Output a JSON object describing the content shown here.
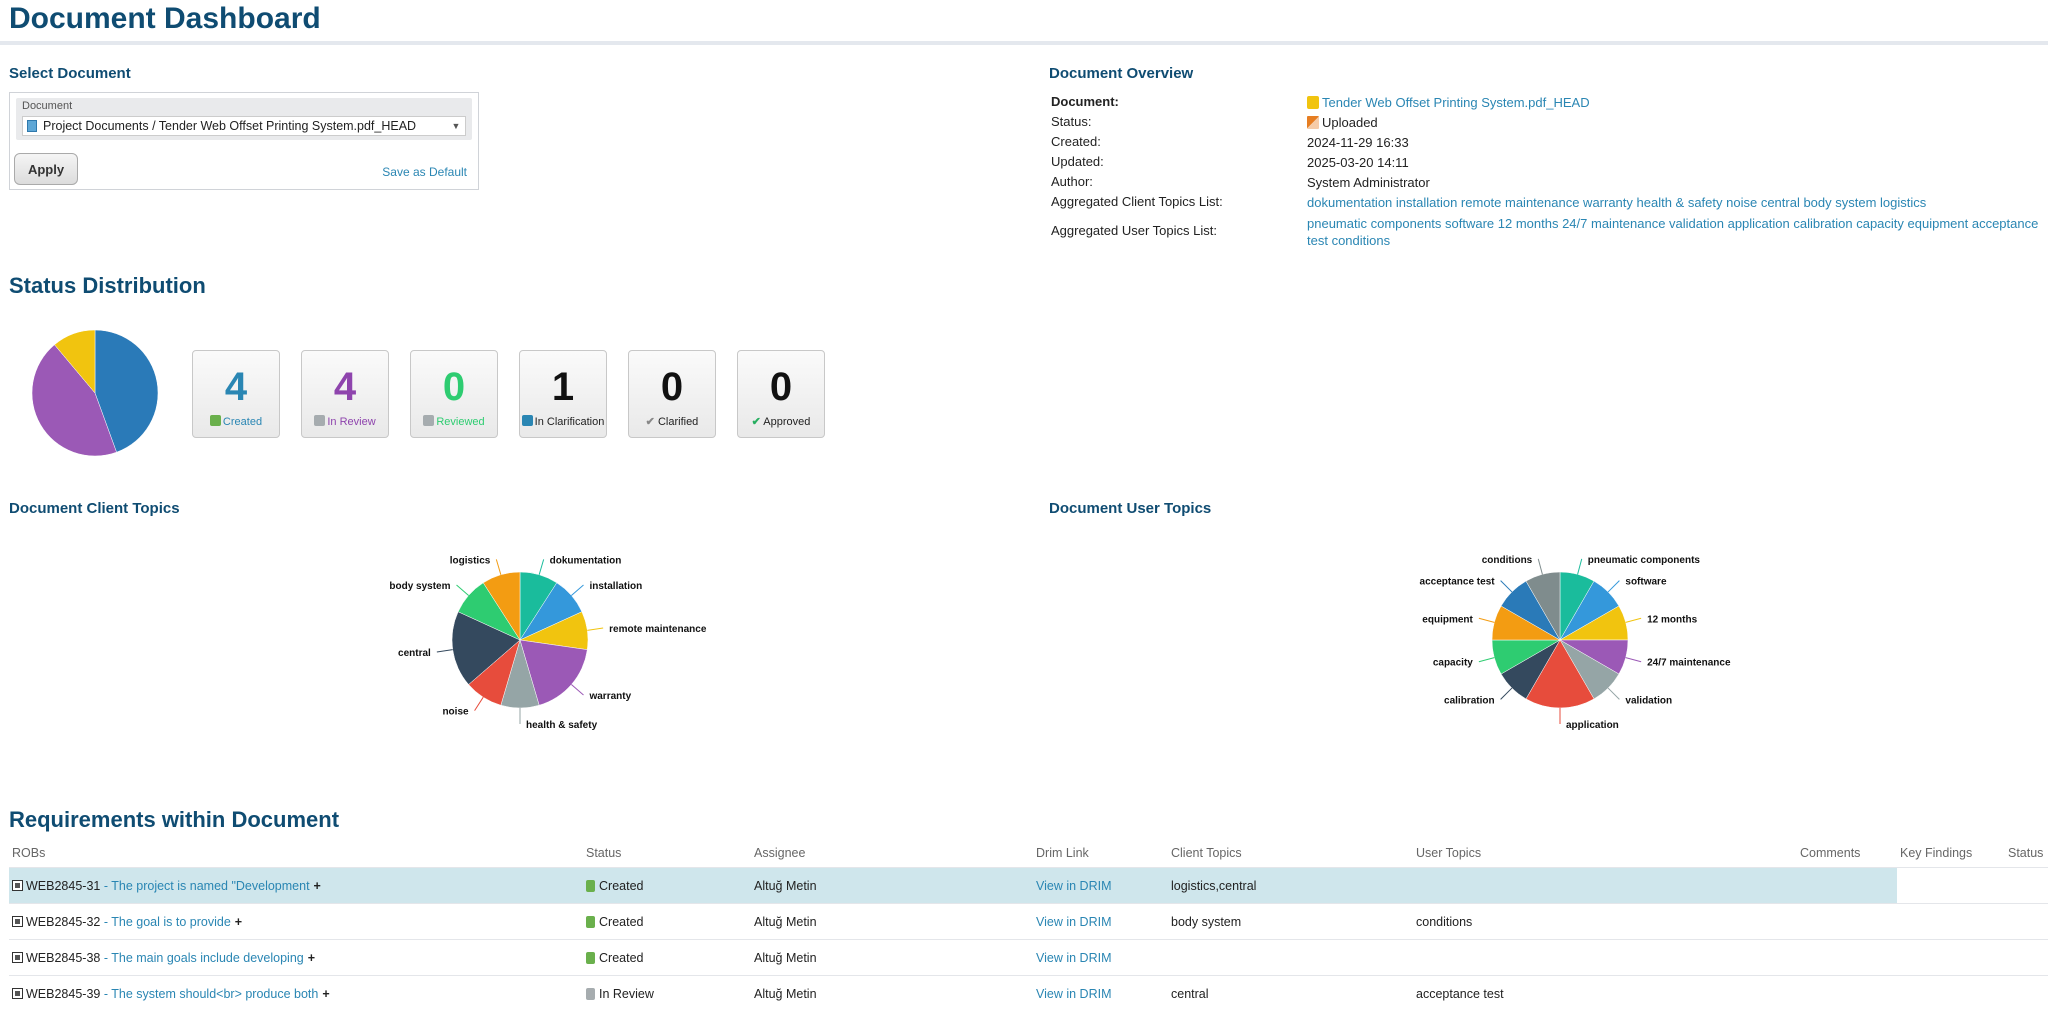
{
  "page": {
    "title": "Document Dashboard"
  },
  "select_document": {
    "heading": "Select Document",
    "field_label": "Document",
    "selected_value": "Project Documents / Tender Web Offset Printing System.pdf_HEAD",
    "apply_label": "Apply",
    "save_default_label": "Save as Default"
  },
  "overview": {
    "heading": "Document Overview",
    "rows": [
      {
        "label": "Document:",
        "value": "Tender Web Offset Printing System.pdf_HEAD"
      },
      {
        "label": "Status:",
        "value": "Uploaded"
      },
      {
        "label": "Created:",
        "value": "2024-11-29 16:33"
      },
      {
        "label": "Updated:",
        "value": "2025-03-20 14:11"
      },
      {
        "label": "Author:",
        "value": "System Administrator"
      },
      {
        "label": "Aggregated Client Topics List:",
        "value": "dokumentation installation remote maintenance warranty health & safety noise central body system logistics"
      },
      {
        "label": "Aggregated User Topics List:",
        "value": "pneumatic components software 12 months 24/7 maintenance validation application calibration capacity equipment acceptance test conditions"
      }
    ]
  },
  "status_distribution": {
    "heading": "Status Distribution",
    "cards": [
      {
        "count": "4",
        "label": "Created",
        "color": "#2a86b3",
        "icon": "created-person-icon"
      },
      {
        "count": "4",
        "label": "In Review",
        "color": "#8e44ad",
        "icon": "in-review-icon"
      },
      {
        "count": "0",
        "label": "Reviewed",
        "color": "#27ae60",
        "icon": "reviewed-icon"
      },
      {
        "count": "1",
        "label": "In Clarification",
        "color": "#111111",
        "icon": "in-clarification-icon"
      },
      {
        "count": "0",
        "label": "Clarified",
        "color": "#111111",
        "icon": "clarified-check-icon"
      },
      {
        "count": "0",
        "label": "Approved",
        "color": "#111111",
        "icon": "approved-check-icon"
      }
    ]
  },
  "client_topics": {
    "heading": "Document Client Topics"
  },
  "user_topics": {
    "heading": "Document User Topics"
  },
  "chart_data": [
    {
      "type": "pie",
      "title": "",
      "categories": [
        "Created",
        "In Review",
        "In Clarification"
      ],
      "values": [
        4,
        4,
        1
      ],
      "colors": [
        "#2a7ab8",
        "#9b59b6",
        "#f1c40f"
      ],
      "labels_shown": false
    },
    {
      "type": "pie",
      "title": "",
      "categories": [
        "dokumentation",
        "installation",
        "remote maintenance",
        "warranty",
        "health & safety",
        "noise",
        "central",
        "body system",
        "logistics"
      ],
      "values": [
        1,
        1,
        1,
        2,
        1,
        1,
        2,
        1,
        1
      ],
      "colors": [
        "#1abc9c",
        "#3498db",
        "#f1c40f",
        "#9b59b6",
        "#95a5a6",
        "#e74c3c",
        "#34495e",
        "#2ecc71",
        "#f39c12"
      ]
    },
    {
      "type": "pie",
      "title": "",
      "categories": [
        "pneumatic components",
        "software",
        "12 months",
        "24/7 maintenance",
        "validation",
        "application",
        "calibration",
        "capacity",
        "equipment",
        "acceptance test",
        "conditions"
      ],
      "values": [
        1,
        1,
        1,
        1,
        1,
        2,
        1,
        1,
        1,
        1,
        1
      ],
      "colors": [
        "#1abc9c",
        "#3498db",
        "#f1c40f",
        "#9b59b6",
        "#95a5a6",
        "#e74c3c",
        "#34495e",
        "#2ecc71",
        "#f39c12",
        "#2a7ab8",
        "#7f8c8d"
      ]
    }
  ],
  "requirements": {
    "heading": "Requirements within Document",
    "columns": [
      "ROBs",
      "Status",
      "Assignee",
      "Drim Link",
      "Client Topics",
      "User Topics",
      "Comments",
      "Key Findings",
      "Status"
    ],
    "rows": [
      {
        "id": "WEB2845-31",
        "text": "- The project is named \"Development",
        "status": "Created",
        "assignee": "Altuğ Metin",
        "link": "View in DRIM",
        "client_topics": "logistics,central",
        "user_topics": ""
      },
      {
        "id": "WEB2845-32",
        "text": "- The goal is to provide",
        "status": "Created",
        "assignee": "Altuğ Metin",
        "link": "View in DRIM",
        "client_topics": "body system",
        "user_topics": "conditions"
      },
      {
        "id": "WEB2845-38",
        "text": "- The main goals include developing",
        "status": "Created",
        "assignee": "Altuğ Metin",
        "link": "View in DRIM",
        "client_topics": "",
        "user_topics": ""
      },
      {
        "id": "WEB2845-39",
        "text": "- The system should<br> produce both",
        "status": "In Review",
        "assignee": "Altuğ Metin",
        "link": "View in DRIM",
        "client_topics": "central",
        "user_topics": "acceptance test"
      }
    ],
    "plus": "+"
  }
}
